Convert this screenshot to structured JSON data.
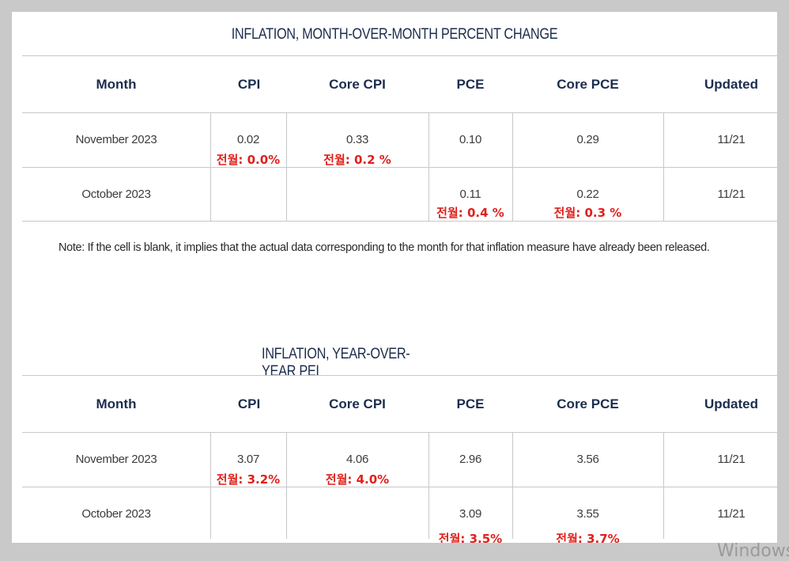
{
  "mom": {
    "title": "INFLATION, MONTH-OVER-MONTH PERCENT CHANGE",
    "headers": [
      "Month",
      "CPI",
      "Core CPI",
      "PCE",
      "Core PCE",
      "Updated"
    ],
    "rows": [
      {
        "month": "November 2023",
        "cpi": "0.02",
        "core_cpi": "0.33",
        "pce": "0.10",
        "core_pce": "0.29",
        "updated": "11/21"
      },
      {
        "month": "October 2023",
        "cpi": "",
        "core_cpi": "",
        "pce": "0.11",
        "core_pce": "0.22",
        "updated": "11/21"
      }
    ],
    "annotations": {
      "nov_cpi": "전월: 0.0%",
      "nov_core_cpi": "전월: 0.2 %",
      "oct_pce": "전월: 0.4 %",
      "oct_core_pce": "전월: 0.3 %"
    }
  },
  "note": "Note: If the cell is blank, it implies that the actual data corresponding to the month for that inflation measure have already been released.",
  "yoy": {
    "title": "INFLATION, YEAR-OVER-YEAR PEI",
    "headers": [
      "Month",
      "CPI",
      "Core CPI",
      "PCE",
      "Core PCE",
      "Updated"
    ],
    "rows": [
      {
        "month": "November 2023",
        "cpi": "3.07",
        "core_cpi": "4.06",
        "pce": "2.96",
        "core_pce": "3.56",
        "updated": "11/21"
      },
      {
        "month": "October 2023",
        "cpi": "",
        "core_cpi": "",
        "pce": "3.09",
        "core_pce": "3.55",
        "updated": "11/21"
      }
    ],
    "annotations": {
      "nov_cpi": "전월: 3.2%",
      "nov_core_cpi": "전월: 4.0%",
      "oct_pce": "전월: 3.5%",
      "oct_core_pce": "전월: 3.7%"
    }
  },
  "watermark": "Windows",
  "colors": {
    "header_text": "#1c2d4d",
    "annotation": "#e0201b",
    "background": "#c9c9c9"
  }
}
